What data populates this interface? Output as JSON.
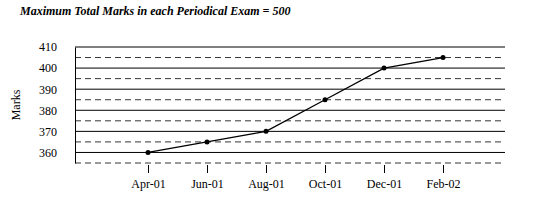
{
  "chart_data": {
    "type": "line",
    "title": "Maximum Total Marks in each Periodical Exam = 500",
    "y_label": "Marks",
    "categories": [
      "Apr-01",
      "Jun-01",
      "Aug-01",
      "Oct-01",
      "Dec-01",
      "Feb-02"
    ],
    "values": [
      360,
      365,
      370,
      385,
      400,
      405
    ],
    "color": "#000000",
    "marker": "circle",
    "ylim": [
      355,
      410
    ],
    "yticks": [
      360,
      370,
      380,
      390,
      400,
      410
    ],
    "grid": true
  }
}
